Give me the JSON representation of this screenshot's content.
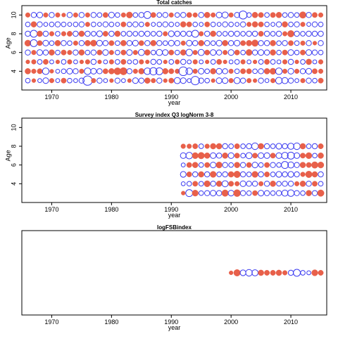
{
  "colors": {
    "positive": "#3a3af0",
    "negative": "#e8604a",
    "frame": "#000000",
    "background": "#ffffff"
  },
  "chart_data": [
    {
      "type": "scatter",
      "subtype": "bubble-residuals",
      "title": "Total catches",
      "xlabel": "year",
      "ylabel": "Age",
      "xlim": [
        1965,
        2016
      ],
      "ylim": [
        2,
        11
      ],
      "xticks": [
        1970,
        1980,
        1990,
        2000,
        2010
      ],
      "yticks": [
        4,
        6,
        8,
        10
      ],
      "ages": [
        3,
        4,
        5,
        6,
        7,
        8,
        9,
        10
      ],
      "years": [
        1966,
        2015
      ],
      "sizes": {
        "3": [
          0.4,
          -0.3,
          0.3,
          0.6,
          -0.4,
          0.3,
          -0.5,
          0.4,
          0.3,
          0.5,
          1.6,
          -0.4,
          0.5,
          0.3,
          -0.3,
          0.5,
          0.3,
          -0.3,
          0.6,
          0.5,
          -0.6,
          -0.4,
          0.5,
          -0.3,
          -0.5,
          0.7,
          0.6,
          0.3,
          1.3,
          0.5,
          0.4,
          -0.3,
          0.6,
          0.6,
          -0.4,
          0.7,
          0.5,
          -0.4,
          -0.3,
          0.5,
          0.3,
          -0.4,
          0.8,
          0.7,
          0.5,
          0.3,
          -0.4,
          0.5,
          0.4,
          -0.5
        ],
        "4": [
          -0.6,
          -0.4,
          -0.5,
          0.8,
          -0.3,
          0.3,
          0.4,
          0.6,
          0.5,
          -0.4,
          0.8,
          0.6,
          0.5,
          -0.5,
          -0.6,
          -0.9,
          -1.0,
          0.5,
          -0.4,
          -0.6,
          0.8,
          1.0,
          0.9,
          -0.6,
          -0.5,
          -0.4,
          1.4,
          0.8,
          -0.4,
          0.6,
          0.4,
          -0.6,
          0.6,
          0.5,
          -0.4,
          0.4,
          -0.5,
          -0.5,
          0.4,
          0.5,
          -0.6,
          -0.7,
          0.8,
          -0.4,
          0.6,
          -0.4,
          0.5,
          0.6,
          -0.5,
          -0.4
        ],
        "5": [
          -0.3,
          -0.4,
          0.4,
          -0.5,
          0.3,
          -0.3,
          0.4,
          -0.4,
          0.3,
          -0.3,
          -0.4,
          0.5,
          -0.3,
          0.3,
          -0.4,
          0.4,
          -0.5,
          0.3,
          0.4,
          -0.4,
          -0.3,
          0.5,
          0.4,
          -0.3,
          0.4,
          -0.4,
          0.5,
          0.3,
          -0.4,
          0.3,
          -0.3,
          0.4,
          -0.5,
          -0.3,
          0.3,
          0.4,
          -0.4,
          0.3,
          -0.3,
          0.4,
          -0.5,
          0.4,
          0.3,
          -0.4,
          0.5,
          -0.3,
          0.4,
          -0.6,
          0.3,
          -0.4
        ],
        "6": [
          0.5,
          -0.4,
          0.6,
          0.5,
          -0.6,
          0.4,
          -0.5,
          -0.4,
          0.5,
          -0.6,
          0.4,
          0.5,
          -0.5,
          0.6,
          -0.4,
          0.4,
          -0.5,
          0.6,
          -0.4,
          0.7,
          -0.6,
          0.4,
          0.7,
          0.6,
          -0.5,
          0.4,
          -0.6,
          0.8,
          -0.4,
          0.7,
          -0.5,
          0.6,
          0.5,
          -0.4,
          0.6,
          -0.5,
          0.4,
          -0.7,
          0.5,
          0.6,
          0.5,
          -0.6,
          0.4,
          -0.5,
          0.6,
          0.4,
          -0.5,
          0.6,
          0.5,
          0.4
        ],
        "7": [
          -0.7,
          0.9,
          -0.5,
          0.6,
          0.4,
          -0.6,
          0.5,
          0.4,
          -0.4,
          0.5,
          -0.6,
          -0.7,
          0.6,
          0.5,
          -0.5,
          0.4,
          -0.6,
          0.5,
          0.6,
          -0.5,
          0.5,
          -0.6,
          0.5,
          0.4,
          0.6,
          0.5,
          -0.4,
          0.6,
          0.5,
          -0.6,
          0.5,
          0.4,
          0.6,
          -0.6,
          0.5,
          0.6,
          -0.5,
          -0.6,
          -0.8,
          0.5,
          0.5,
          -0.6,
          0.4,
          0.5,
          -0.5,
          0.4,
          -0.4,
          0.5,
          -0.3,
          0.5
        ],
        "8": [
          0.5,
          0.9,
          -0.6,
          0.5,
          -0.4,
          0.4,
          -0.4,
          -0.5,
          0.5,
          -0.6,
          0.5,
          0.4,
          0.6,
          -0.5,
          0.5,
          -0.6,
          0.4,
          0.5,
          0.4,
          0.5,
          0.5,
          0.4,
          0.5,
          -0.4,
          0.6,
          0.5,
          0.5,
          0.5,
          0.9,
          -0.4,
          0.5,
          -0.6,
          0.4,
          0.4,
          0.5,
          0.5,
          0.4,
          0.5,
          0.5,
          -0.5,
          0.5,
          0.4,
          0.5,
          -0.4,
          -0.8,
          0.5,
          0.4,
          0.5,
          0.5,
          0.5
        ],
        "9": [
          0.4,
          -0.6,
          0.5,
          0.3,
          0.4,
          0.5,
          0.4,
          0.3,
          0.4,
          0.5,
          -0.4,
          0.4,
          0.3,
          0.5,
          0.4,
          0.3,
          -0.5,
          0.4,
          0.5,
          0.4,
          -0.4,
          0.3,
          0.4,
          0.5,
          0.4,
          0.3,
          -0.6,
          -0.5,
          0.4,
          0.3,
          -0.5,
          0.4,
          0.3,
          0.5,
          0.4,
          0.3,
          0.5,
          -0.4,
          -0.6,
          -0.5,
          0.4,
          0.3,
          0.5,
          -0.6,
          0.4,
          0.5,
          -0.4,
          0.3,
          0.5,
          0.4
        ],
        "10": [
          -0.4,
          0.5,
          0.6,
          -0.4,
          0.5,
          -0.4,
          -0.3,
          0.5,
          -0.4,
          0.5,
          -0.4,
          0.5,
          0.4,
          -0.5,
          0.6,
          0.4,
          -0.4,
          -0.7,
          0.4,
          0.5,
          0.9,
          -0.5,
          0.4,
          0.5,
          -0.4,
          0.4,
          0.5,
          -0.5,
          -0.4,
          0.5,
          -0.6,
          -0.4,
          0.6,
          0.7,
          -0.4,
          0.5,
          1.2,
          0.4,
          -0.6,
          -0.5,
          0.4,
          -0.5,
          -0.6,
          0.4,
          0.5,
          0.4,
          -0.8,
          0.5,
          -0.5,
          -0.4
        ]
      }
    },
    {
      "type": "scatter",
      "subtype": "bubble-residuals",
      "title": "Survey index Q3 logNorm 3-8",
      "xlabel": "year",
      "ylabel": "Age",
      "xlim": [
        1965,
        2016
      ],
      "ylim": [
        2,
        11
      ],
      "xticks": [
        1970,
        1980,
        1990,
        2000,
        2010
      ],
      "yticks": [
        4,
        6,
        8,
        10
      ],
      "ages": [
        3,
        4,
        5,
        6,
        7,
        8
      ],
      "years": [
        1992,
        2015
      ],
      "sizes": {
        "3": [
          -0.3,
          0.9,
          -0.7,
          0.4,
          0.5,
          0.6,
          0.5,
          -0.8,
          0.6,
          -0.9,
          0.5,
          0.4,
          -0.5,
          0.6,
          0.5,
          0.4,
          0.5,
          0.7,
          0.8,
          0.5,
          0.4,
          -0.6,
          0.5,
          -0.8
        ],
        "4": [
          0.3,
          0.4,
          -0.5,
          0.4,
          -0.7,
          0.5,
          -0.6,
          0.7,
          -0.5,
          -0.4,
          0.6,
          0.5,
          0.5,
          -0.4,
          0.5,
          -0.6,
          0.4,
          0.5,
          0.5,
          -0.4,
          -0.6,
          0.5,
          -0.5,
          0.4
        ],
        "5": [
          0.6,
          -0.5,
          0.5,
          -0.6,
          0.5,
          -0.7,
          0.4,
          0.5,
          -0.6,
          -0.8,
          0.5,
          0.4,
          -0.7,
          0.5,
          -0.5,
          0.4,
          0.6,
          0.5,
          0.6,
          0.5,
          -0.4,
          -0.8,
          -0.6,
          0.5
        ],
        "6": [
          0.3,
          -0.5,
          -0.6,
          0.4,
          -0.5,
          0.6,
          -0.7,
          0.5,
          0.4,
          -0.6,
          0.5,
          -0.5,
          0.6,
          0.4,
          -0.5,
          0.5,
          0.4,
          0.9,
          0.7,
          0.5,
          -0.6,
          -0.5,
          -0.8,
          -0.7
        ],
        "7": [
          0.6,
          0.8,
          -0.7,
          -0.8,
          -0.6,
          0.6,
          0.5,
          -0.6,
          0.6,
          -0.5,
          0.4,
          0.7,
          -0.5,
          0.6,
          0.6,
          -0.5,
          0.6,
          0.8,
          0.9,
          0.6,
          -0.5,
          -0.7,
          0.4,
          -0.6
        ],
        "8": [
          -0.4,
          -0.4,
          -0.5,
          0.4,
          -0.4,
          -0.6,
          -0.6,
          0.5,
          0.4,
          -0.5,
          0.4,
          0.5,
          0.8,
          -0.6,
          0.5,
          0.4,
          0.6,
          0.5,
          0.7,
          0.8,
          -0.6,
          0.4,
          0.5,
          -0.5
        ]
      }
    },
    {
      "type": "scatter",
      "subtype": "bubble-residuals",
      "title": "logFSBindex",
      "xlabel": "year",
      "ylabel": "",
      "xlim": [
        1965,
        2016
      ],
      "xticks": [
        1970,
        1980,
        1990,
        2000,
        2010
      ],
      "yticks": [],
      "ages": [
        0
      ],
      "years": [
        2000,
        2015
      ],
      "sizes": {
        "0": [
          -0.3,
          -0.8,
          0.6,
          0.8,
          0.7,
          -0.6,
          -0.5,
          -0.5,
          -0.6,
          -0.4,
          0.5,
          0.9,
          0.4,
          0.3,
          -0.7,
          -0.5
        ]
      }
    }
  ]
}
